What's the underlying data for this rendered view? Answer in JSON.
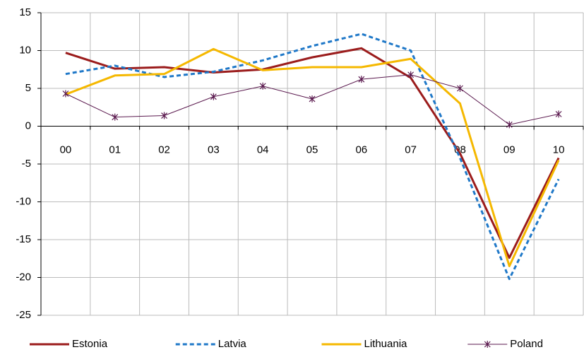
{
  "chart_data": {
    "type": "line",
    "categories": [
      "00",
      "01",
      "02",
      "03",
      "04",
      "05",
      "06",
      "07",
      "08",
      "09",
      "10"
    ],
    "series": [
      {
        "name": "Estonia",
        "color": "#9b1c1c",
        "dash": "solid",
        "width": 3,
        "marker": false,
        "values": [
          9.7,
          7.6,
          7.8,
          7.1,
          7.5,
          9.1,
          10.3,
          6.4,
          -3.6,
          -17.4,
          -4.2
        ]
      },
      {
        "name": "Latvia",
        "color": "#1f78c8",
        "dash": "dotted",
        "width": 3,
        "marker": false,
        "values": [
          6.9,
          8.0,
          6.5,
          7.2,
          8.7,
          10.6,
          12.2,
          10.0,
          -4.2,
          -20.2,
          -7.0
        ]
      },
      {
        "name": "Lithuania",
        "color": "#f5b800",
        "dash": "solid",
        "width": 3,
        "marker": false,
        "values": [
          4.2,
          6.7,
          6.9,
          10.2,
          7.4,
          7.8,
          7.8,
          8.9,
          3.0,
          -18.5,
          -4.5
        ]
      },
      {
        "name": "Poland",
        "color": "#5b1a4f",
        "dash": "solid",
        "width": 1,
        "marker": true,
        "values": [
          4.3,
          1.2,
          1.4,
          3.9,
          5.3,
          3.6,
          6.2,
          6.8,
          5.0,
          0.2,
          1.6
        ]
      }
    ],
    "ylim": [
      -25,
      15
    ],
    "yticks": [
      -25,
      -20,
      -15,
      -10,
      -5,
      0,
      5,
      10,
      15
    ],
    "grid": true,
    "legend": "bottom"
  }
}
